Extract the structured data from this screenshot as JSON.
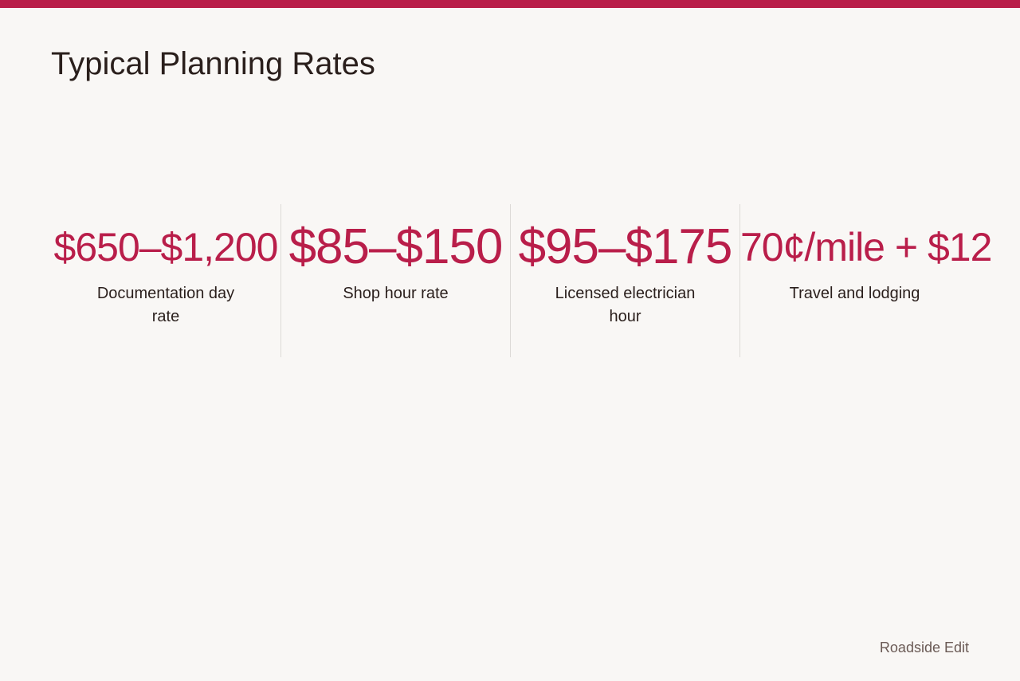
{
  "colors": {
    "accent": "#b91e4a",
    "background": "#f9f7f5",
    "text": "#2a1f1c",
    "muted": "#6a5a55",
    "divider": "#dddad7"
  },
  "slide": {
    "title": "Typical Planning Rates",
    "brand": "Roadside Edit"
  },
  "stats": [
    {
      "value": "$650–$1,200",
      "label": "Documentation day rate"
    },
    {
      "value": "$85–$150",
      "label": "Shop hour rate"
    },
    {
      "value": "$95–$175",
      "label": "Licensed electrician hour"
    },
    {
      "value": "70¢/mile + $12",
      "label": "Travel and lodging"
    }
  ]
}
